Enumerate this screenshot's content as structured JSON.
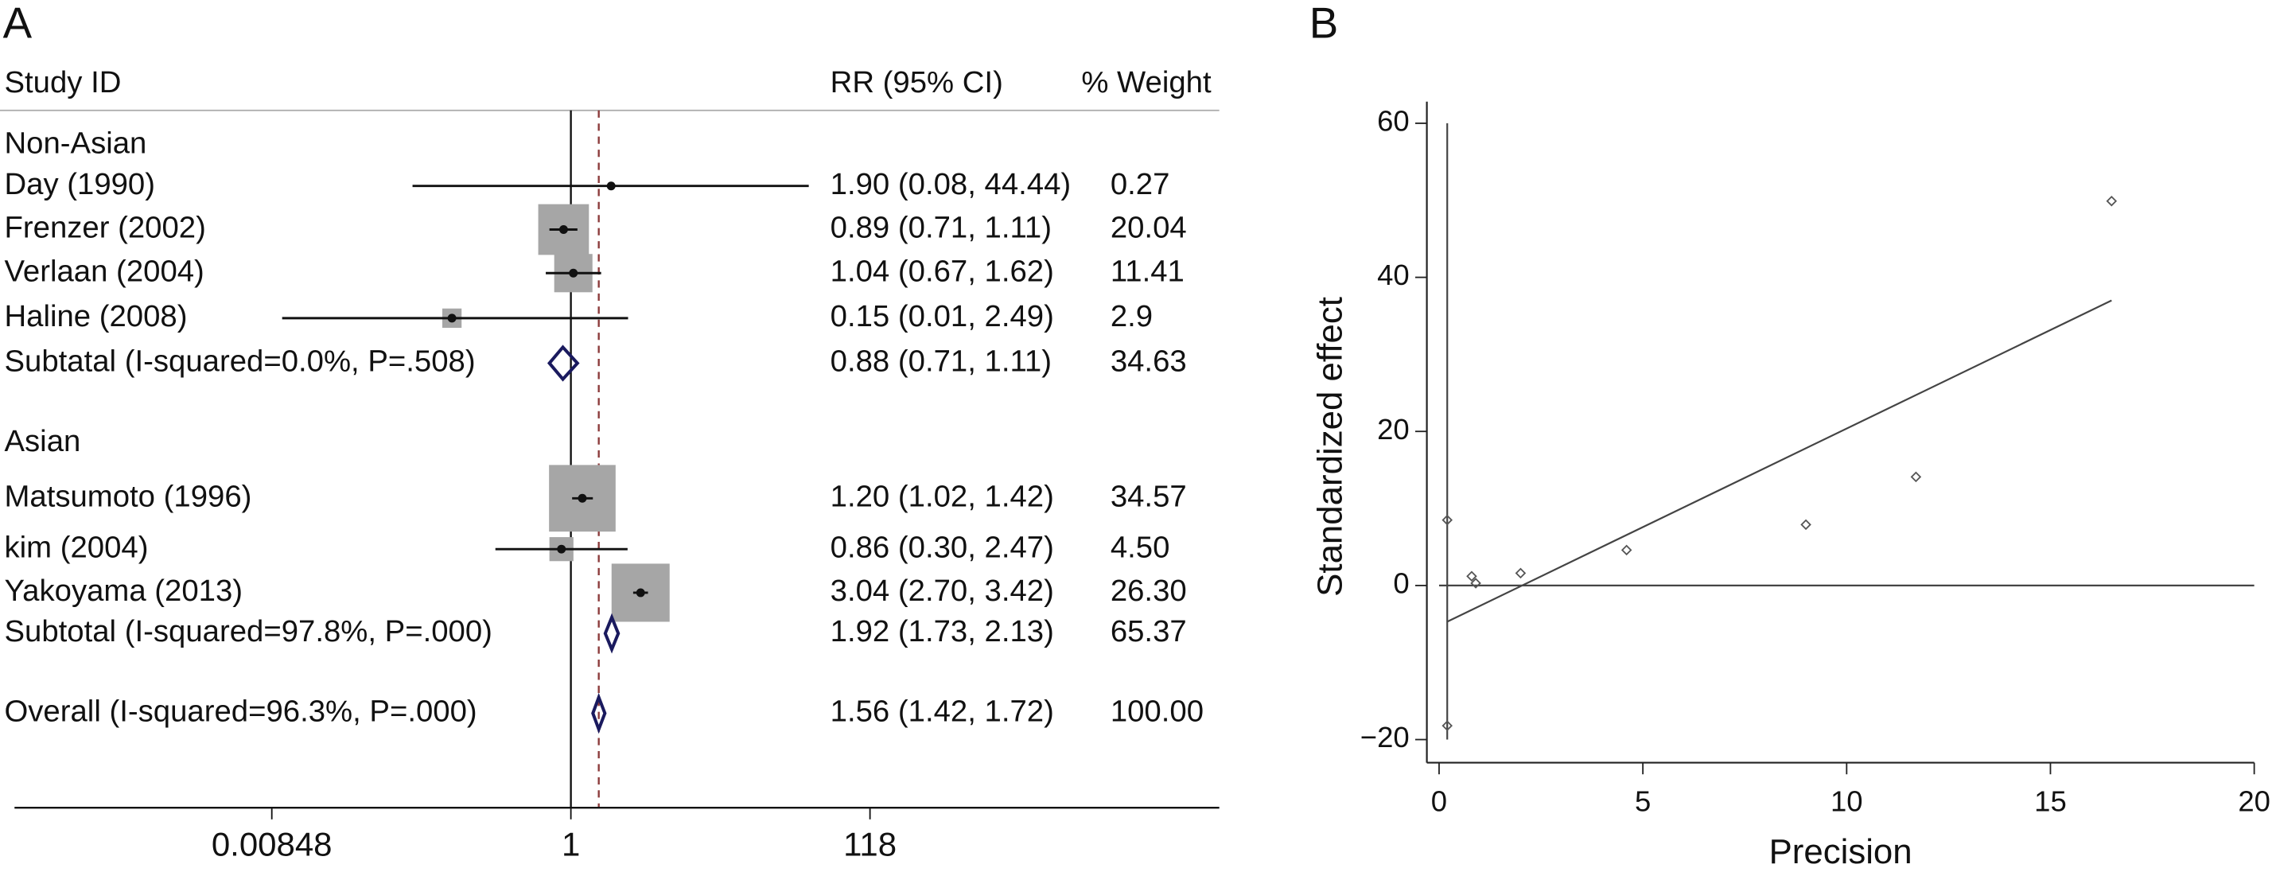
{
  "chart_data": [
    {
      "type": "forest",
      "panel": "A",
      "headers": [
        "Study ID",
        "RR (95% CI)",
        "% Weight"
      ],
      "groups": [
        {
          "name": "Non-Asian",
          "studies": [
            {
              "label": "Day (1990)",
              "rr": 1.9,
              "lower": 0.08,
              "upper": 44.44,
              "ci_label": "1.90 (0.08, 44.44)",
              "weight": 0.27
            },
            {
              "label": "Frenzer (2002)",
              "rr": 0.89,
              "lower": 0.71,
              "upper": 1.11,
              "ci_label": "0.89 (0.71, 1.11)",
              "weight": 20.04
            },
            {
              "label": "Verlaan (2004)",
              "rr": 1.04,
              "lower": 0.67,
              "upper": 1.62,
              "ci_label": "1.04 (0.67, 1.62)",
              "weight": 11.41
            },
            {
              "label": "Haline (2008)",
              "rr": 0.15,
              "lower": 0.01,
              "upper": 2.49,
              "ci_label": "0.15 (0.01, 2.49)",
              "weight": 2.9
            }
          ],
          "subtotal": {
            "label": "Subtatal (I-squared=0.0%, P=.508)",
            "rr": 0.88,
            "lower": 0.71,
            "upper": 1.11,
            "ci_label": "0.88 (0.71, 1.11)",
            "weight": 34.63
          }
        },
        {
          "name": "Asian",
          "studies": [
            {
              "label": "Matsumoto (1996)",
              "rr": 1.2,
              "lower": 1.02,
              "upper": 1.42,
              "ci_label": "1.20 (1.02, 1.42)",
              "weight": 34.57
            },
            {
              "label": "kim (2004)",
              "rr": 0.86,
              "lower": 0.3,
              "upper": 2.47,
              "ci_label": "0.86 (0.30, 2.47)",
              "weight": 4.5,
              "weight_label": "4.50"
            },
            {
              "label": "Yakoyama (2013)",
              "rr": 3.04,
              "lower": 2.7,
              "upper": 3.42,
              "ci_label": "3.04 (2.70, 3.42)",
              "weight": 26.3,
              "weight_label": "26.30"
            }
          ],
          "subtotal": {
            "label": "Subtotal (I-squared=97.8%, P=.000)",
            "rr": 1.92,
            "lower": 1.73,
            "upper": 2.13,
            "ci_label": "1.92 (1.73, 2.13)",
            "weight": 65.37
          }
        }
      ],
      "overall": {
        "label": "Overall (I-squared=96.3%, P=.000)",
        "rr": 1.56,
        "lower": 1.42,
        "upper": 1.72,
        "ci_label": "1.56 (1.42, 1.72)",
        "weight": 100,
        "weight_label": "100.00"
      },
      "null_line": 1,
      "log_x": true,
      "xlim": [
        0.00014,
        31000
      ],
      "xticks": [
        0.00848,
        1,
        118
      ],
      "color": "#a6a6a6",
      "diamond_color": "#1a1a5e"
    },
    {
      "type": "scatter",
      "panel": "B",
      "xlabel": "Precision",
      "ylabel": "Standardized effect",
      "x": [
        0.2,
        0.2,
        0.8,
        0.9,
        2.0,
        4.6,
        9.0,
        11.7,
        16.5
      ],
      "values": [
        8.5,
        -18.2,
        1.2,
        0.3,
        1.6,
        4.6,
        7.9,
        14.1,
        49.9
      ],
      "fit": {
        "x": [
          0.2,
          16.5
        ],
        "values": [
          -4.7,
          37
        ]
      },
      "hline": 0,
      "vline": 0.2,
      "xlim": [
        -0.3,
        20
      ],
      "xticks": [
        0,
        5,
        10,
        15,
        20
      ],
      "ylim": [
        -23,
        62.8
      ],
      "yticks": [
        {
          "value": -20,
          "label": "−20"
        },
        0,
        20,
        40,
        60
      ],
      "color": "#555555"
    }
  ]
}
